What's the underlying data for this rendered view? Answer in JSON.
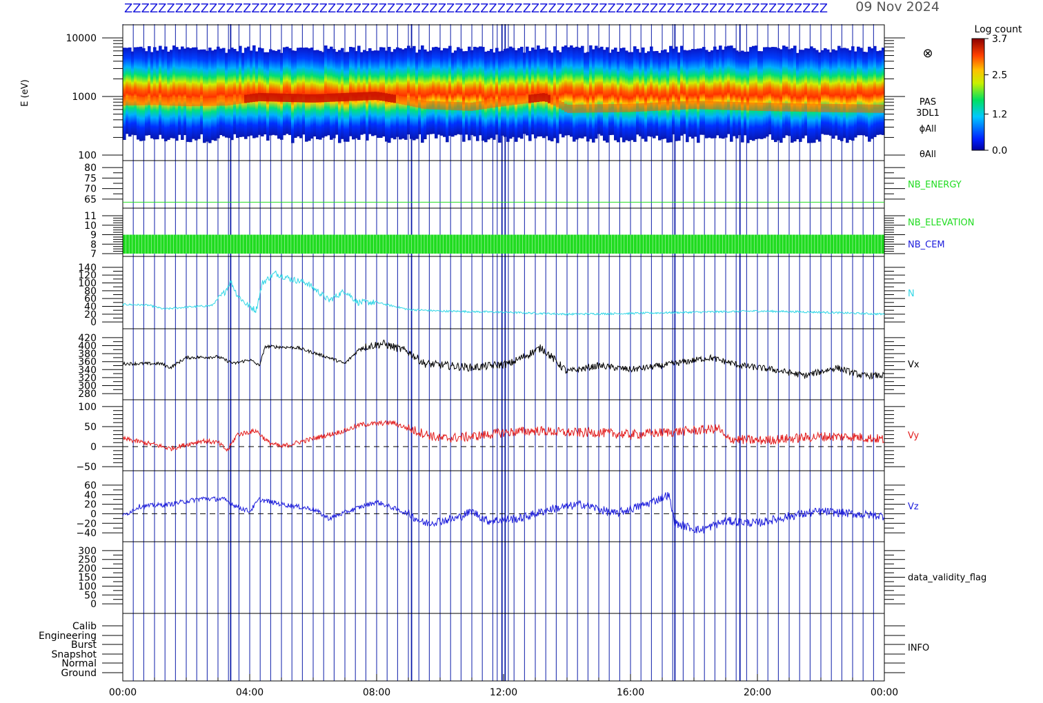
{
  "page": {
    "date_label": "09 Nov 2024",
    "header_text": "ZZZZZZZZZZZZZZZZZZZZZZZZZZZZZZZZZZZZZZZZZZZZZZZZZZZZZZZZZZZZZZZZZZZZZZZZZZZZZZZZZZZ"
  },
  "colorbar": {
    "title": "Log count",
    "ticks": [
      "3.7",
      "2.5",
      "1.2",
      "0.0"
    ],
    "tick_values": [
      3.7,
      2.5,
      1.2,
      0.0
    ]
  },
  "colors": {
    "vx": "#000000",
    "vy": "#e21b1b",
    "vz": "#1b1bdc",
    "n": "#30d6e6",
    "nb": "#20dc20",
    "frame": "#000000",
    "vlines": "#0b1ba8",
    "nb_cem_label": "#1b1bdc"
  },
  "chart_data": {
    "type": "line",
    "x_axis": {
      "range": [
        "00:00",
        "24:00"
      ],
      "ticks": [
        "00:00",
        "04:00",
        "08:00",
        "12:00",
        "16:00",
        "20:00",
        "00:00"
      ],
      "tick_hours": [
        0,
        4,
        8,
        12,
        16,
        20,
        24
      ]
    },
    "vertical_lines_hours": [
      0.0,
      0.33,
      0.66,
      1.0,
      1.33,
      1.66,
      2.0,
      2.33,
      2.66,
      3.0,
      3.33,
      3.4,
      3.66,
      4.0,
      4.33,
      4.66,
      5.0,
      5.33,
      5.66,
      6.0,
      6.33,
      6.66,
      7.0,
      7.33,
      7.66,
      8.0,
      8.33,
      8.66,
      9.0,
      9.1,
      9.33,
      9.66,
      10.0,
      10.33,
      10.66,
      11.0,
      11.33,
      11.66,
      11.8,
      11.95,
      12.05,
      12.15,
      12.33,
      12.66,
      13.0,
      13.33,
      13.66,
      14.0,
      14.33,
      14.66,
      15.0,
      15.33,
      15.66,
      16.0,
      16.33,
      16.66,
      17.0,
      17.33,
      17.4,
      17.66,
      18.0,
      18.33,
      18.66,
      19.0,
      19.33,
      19.45,
      19.66,
      20.0,
      20.33,
      20.66,
      21.0,
      21.33,
      21.66,
      22.0,
      22.33,
      22.66,
      23.0,
      23.33,
      23.66
    ],
    "panels": [
      {
        "id": "spectrogram",
        "type": "heatmap",
        "ylabel": "E (eV)",
        "yscale": "log",
        "ylim": [
          100,
          15000
        ],
        "yticks": [
          "10000",
          "1000",
          "100"
        ],
        "ytick_values": [
          10000,
          1000,
          100
        ],
        "right_labels": [
          "PAS",
          "3DL1",
          "ϕAll",
          "θAll"
        ],
        "symbol": "⊗",
        "peak_energy_eV": 800,
        "upper_edge_eV": 6500,
        "lower_edge_eV": 200,
        "peak_energy_profile": [
          {
            "t": 0,
            "e": 800
          },
          {
            "t": 1,
            "e": 820
          },
          {
            "t": 2,
            "e": 780
          },
          {
            "t": 3.3,
            "e": 800
          },
          {
            "t": 4.3,
            "e": 950
          },
          {
            "t": 6,
            "e": 900
          },
          {
            "t": 8,
            "e": 1000
          },
          {
            "t": 9.5,
            "e": 700
          },
          {
            "t": 11,
            "e": 650
          },
          {
            "t": 13.3,
            "e": 950
          },
          {
            "t": 14,
            "e": 600
          },
          {
            "t": 16,
            "e": 620
          },
          {
            "t": 18,
            "e": 700
          },
          {
            "t": 20,
            "e": 650
          },
          {
            "t": 22,
            "e": 620
          },
          {
            "t": 24,
            "e": 600
          }
        ]
      },
      {
        "id": "nb_energy",
        "ylim": [
          62,
          82
        ],
        "yticks": [
          "80",
          "75",
          "70",
          "65"
        ],
        "ytick_values": [
          80,
          75,
          70,
          65
        ],
        "right_labels": [
          "NB_ENERGY"
        ],
        "line_value": 63.5
      },
      {
        "id": "nb_elevation",
        "ylim": [
          7,
          11
        ],
        "yticks": [
          "11",
          "10",
          "9",
          "8",
          "7"
        ],
        "ytick_values": [
          11,
          10,
          9,
          8,
          7
        ],
        "right_labels": [
          "NB_ELEVATION",
          "NB_CEM"
        ],
        "band": [
          7,
          9
        ]
      },
      {
        "id": "n",
        "ylim": [
          -5,
          145
        ],
        "yticks": [
          "140",
          "120",
          "100",
          "80",
          "60",
          "40",
          "20",
          "0"
        ],
        "ytick_values": [
          140,
          120,
          100,
          80,
          60,
          40,
          20,
          0
        ],
        "right_labels": [
          "N"
        ],
        "series": [
          {
            "name": "N",
            "color_key": "n",
            "points": [
              {
                "t": 0,
                "v": 45
              },
              {
                "t": 0.8,
                "v": 43
              },
              {
                "t": 1.3,
                "v": 33
              },
              {
                "t": 2,
                "v": 38
              },
              {
                "t": 2.8,
                "v": 42
              },
              {
                "t": 3.2,
                "v": 75
              },
              {
                "t": 3.4,
                "v": 105
              },
              {
                "t": 3.6,
                "v": 70
              },
              {
                "t": 3.9,
                "v": 45
              },
              {
                "t": 4.2,
                "v": 30
              },
              {
                "t": 4.4,
                "v": 100
              },
              {
                "t": 4.8,
                "v": 125
              },
              {
                "t": 5.3,
                "v": 110
              },
              {
                "t": 5.8,
                "v": 100
              },
              {
                "t": 6.2,
                "v": 75
              },
              {
                "t": 6.5,
                "v": 55
              },
              {
                "t": 7.0,
                "v": 80
              },
              {
                "t": 7.4,
                "v": 50
              },
              {
                "t": 8.0,
                "v": 50
              },
              {
                "t": 9.0,
                "v": 32
              },
              {
                "t": 10,
                "v": 28
              },
              {
                "t": 12,
                "v": 25
              },
              {
                "t": 14,
                "v": 20
              },
              {
                "t": 16,
                "v": 22
              },
              {
                "t": 18,
                "v": 25
              },
              {
                "t": 20,
                "v": 28
              },
              {
                "t": 22,
                "v": 25
              },
              {
                "t": 24,
                "v": 20
              }
            ]
          }
        ]
      },
      {
        "id": "vx",
        "ylim": [
          275,
          425
        ],
        "yticks": [
          "420",
          "400",
          "380",
          "360",
          "340",
          "320",
          "300",
          "280"
        ],
        "ytick_values": [
          420,
          400,
          380,
          360,
          340,
          320,
          300,
          280
        ],
        "right_labels": [
          "Vx"
        ],
        "series": [
          {
            "name": "Vx",
            "color_key": "vx",
            "points": [
              {
                "t": 0,
                "v": 355
              },
              {
                "t": 1.2,
                "v": 355
              },
              {
                "t": 1.5,
                "v": 345
              },
              {
                "t": 2.0,
                "v": 370
              },
              {
                "t": 3.0,
                "v": 372
              },
              {
                "t": 3.5,
                "v": 355
              },
              {
                "t": 4.0,
                "v": 365
              },
              {
                "t": 4.3,
                "v": 350
              },
              {
                "t": 4.5,
                "v": 398
              },
              {
                "t": 5.5,
                "v": 395
              },
              {
                "t": 6.5,
                "v": 370
              },
              {
                "t": 7.0,
                "v": 355
              },
              {
                "t": 7.5,
                "v": 395
              },
              {
                "t": 8.2,
                "v": 405
              },
              {
                "t": 9.0,
                "v": 385
              },
              {
                "t": 9.5,
                "v": 355
              },
              {
                "t": 11,
                "v": 345
              },
              {
                "t": 12.2,
                "v": 355
              },
              {
                "t": 13.2,
                "v": 395
              },
              {
                "t": 14,
                "v": 335
              },
              {
                "t": 15,
                "v": 350
              },
              {
                "t": 16,
                "v": 340
              },
              {
                "t": 17,
                "v": 350
              },
              {
                "t": 18.5,
                "v": 370
              },
              {
                "t": 19.5,
                "v": 350
              },
              {
                "t": 20.5,
                "v": 340
              },
              {
                "t": 21.5,
                "v": 325
              },
              {
                "t": 22.5,
                "v": 345
              },
              {
                "t": 23.3,
                "v": 325
              },
              {
                "t": 24,
                "v": 325
              }
            ]
          }
        ]
      },
      {
        "id": "vy",
        "ylim": [
          -55,
          105
        ],
        "yticks": [
          "100",
          "50",
          "0",
          "−50"
        ],
        "ytick_values": [
          100,
          50,
          0,
          -50
        ],
        "right_labels": [
          "Vy"
        ],
        "zero_line": true,
        "series": [
          {
            "name": "Vy",
            "color_key": "vy",
            "points": [
              {
                "t": 0,
                "v": 20
              },
              {
                "t": 1.0,
                "v": 5
              },
              {
                "t": 1.5,
                "v": -5
              },
              {
                "t": 2.5,
                "v": 15
              },
              {
                "t": 3.0,
                "v": 10
              },
              {
                "t": 3.3,
                "v": -10
              },
              {
                "t": 3.6,
                "v": 30
              },
              {
                "t": 4.2,
                "v": 40
              },
              {
                "t": 4.6,
                "v": 10
              },
              {
                "t": 5.0,
                "v": 0
              },
              {
                "t": 6.0,
                "v": 20
              },
              {
                "t": 7.0,
                "v": 40
              },
              {
                "t": 7.5,
                "v": 55
              },
              {
                "t": 8.5,
                "v": 60
              },
              {
                "t": 9.0,
                "v": 45
              },
              {
                "t": 10,
                "v": 20
              },
              {
                "t": 11,
                "v": 25
              },
              {
                "t": 12,
                "v": 35
              },
              {
                "t": 13,
                "v": 40
              },
              {
                "t": 14,
                "v": 35
              },
              {
                "t": 15,
                "v": 35
              },
              {
                "t": 16,
                "v": 30
              },
              {
                "t": 17,
                "v": 35
              },
              {
                "t": 18,
                "v": 40
              },
              {
                "t": 18.8,
                "v": 45
              },
              {
                "t": 19,
                "v": 20
              },
              {
                "t": 20,
                "v": 15
              },
              {
                "t": 21,
                "v": 20
              },
              {
                "t": 22,
                "v": 25
              },
              {
                "t": 23,
                "v": 25
              },
              {
                "t": 24,
                "v": 18
              }
            ]
          }
        ]
      },
      {
        "id": "vz",
        "ylim": [
          -50,
          70
        ],
        "yticks": [
          "60",
          "40",
          "20",
          "0",
          "−20",
          "−40"
        ],
        "ytick_values": [
          60,
          40,
          20,
          0,
          -20,
          -40
        ],
        "right_labels": [
          "Vz"
        ],
        "zero_line": true,
        "series": [
          {
            "name": "Vz",
            "color_key": "vz",
            "points": [
              {
                "t": 0,
                "v": -5
              },
              {
                "t": 0.5,
                "v": 15
              },
              {
                "t": 1.5,
                "v": 20
              },
              {
                "t": 2.5,
                "v": 32
              },
              {
                "t": 3.2,
                "v": 30
              },
              {
                "t": 3.6,
                "v": 15
              },
              {
                "t": 4.0,
                "v": 5
              },
              {
                "t": 4.3,
                "v": 30
              },
              {
                "t": 5.0,
                "v": 20
              },
              {
                "t": 6.0,
                "v": 10
              },
              {
                "t": 6.5,
                "v": -10
              },
              {
                "t": 7.3,
                "v": 10
              },
              {
                "t": 8.0,
                "v": 25
              },
              {
                "t": 9.0,
                "v": 0
              },
              {
                "t": 9.5,
                "v": -20
              },
              {
                "t": 10.5,
                "v": -10
              },
              {
                "t": 11,
                "v": 5
              },
              {
                "t": 11.5,
                "v": -15
              },
              {
                "t": 12.5,
                "v": -10
              },
              {
                "t": 13.5,
                "v": 10
              },
              {
                "t": 14.5,
                "v": 20
              },
              {
                "t": 15.5,
                "v": 0
              },
              {
                "t": 16.5,
                "v": 20
              },
              {
                "t": 17.2,
                "v": 40
              },
              {
                "t": 17.4,
                "v": -20
              },
              {
                "t": 18.2,
                "v": -35
              },
              {
                "t": 19,
                "v": -15
              },
              {
                "t": 20,
                "v": -20
              },
              {
                "t": 21,
                "v": -5
              },
              {
                "t": 22,
                "v": 5
              },
              {
                "t": 23,
                "v": 0
              },
              {
                "t": 24,
                "v": -5
              }
            ]
          }
        ]
      },
      {
        "id": "data_validity_flag",
        "ylim": [
          -15,
          315
        ],
        "yticks": [
          "300",
          "250",
          "200",
          "150",
          "100",
          "50",
          "0"
        ],
        "ytick_values": [
          300,
          250,
          200,
          150,
          100,
          50,
          0
        ],
        "right_labels": [
          "data_validity_flag"
        ]
      },
      {
        "id": "info",
        "yticks": [
          "Calib",
          "Engineering",
          "Burst",
          "Snapshot",
          "Normal",
          "Ground"
        ],
        "right_labels": [
          "INFO"
        ]
      }
    ]
  }
}
